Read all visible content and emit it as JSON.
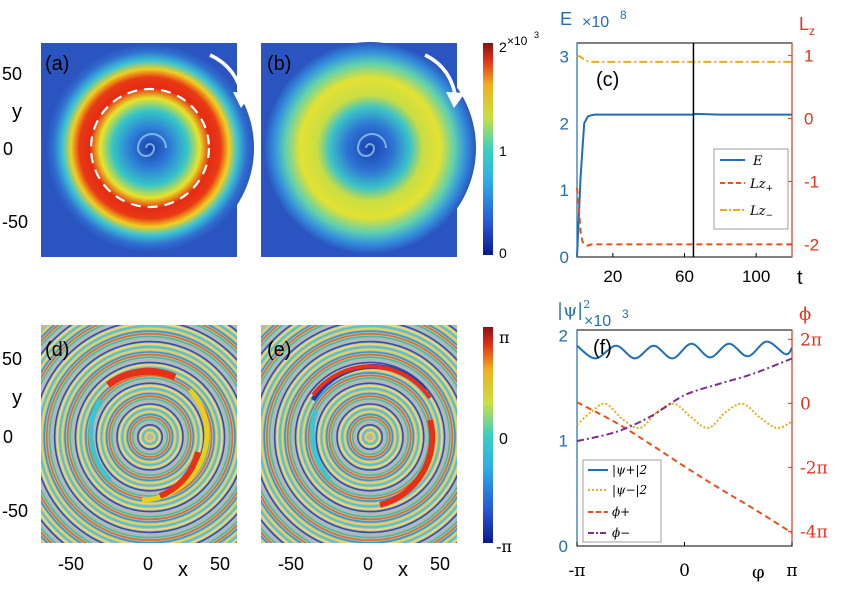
{
  "figure": {
    "panel_labels": [
      "(a)",
      "(b)",
      "(c)",
      "(d)",
      "(e)",
      "(f)"
    ],
    "map_axes": {
      "y_label": "y",
      "x_label": "x",
      "y_ticks": [
        "50",
        "0",
        "-50"
      ],
      "x_ticks": [
        "-50",
        "0",
        "50"
      ]
    },
    "density_colorbar": {
      "ticks": [
        "0",
        "1",
        "2"
      ],
      "exponent_label": "×10",
      "exponent": "3",
      "range": [
        0,
        2000
      ]
    },
    "phase_colorbar": {
      "ticks": [
        "π",
        "0",
        "-π"
      ],
      "range": [
        "-π",
        "π"
      ]
    },
    "colors": {
      "blue": "#1f6fb4",
      "orange": "#e8501c",
      "yellow": "#e9ad1c",
      "purple": "#7e2f8e",
      "black": "#000000",
      "right_axis": "#e8321c"
    }
  },
  "chart_data": [
    {
      "panel": "(c)",
      "type": "line",
      "xlabel": "t",
      "ylabel_left": "E",
      "ylabel_left_exponent": "×10",
      "ylabel_left_exponent_power": "8",
      "ylabel_right": "L",
      "ylabel_right_sub": "z",
      "xlim": [
        0,
        120
      ],
      "ylim_left": [
        0,
        3.2
      ],
      "ylim_right": [
        -2.2,
        1.2
      ],
      "xticks": [
        "20",
        "60",
        "100"
      ],
      "yticks_left": [
        "0",
        "1",
        "2",
        "3"
      ],
      "yticks_right": [
        "1",
        "0",
        "-1",
        "-2"
      ],
      "vertical_line_x": 65,
      "legend": {
        "position": "bottom-right",
        "entries": [
          "E",
          "Lz",
          "Lz"
        ],
        "subscripts": [
          "",
          "+",
          "−"
        ]
      },
      "series": [
        {
          "name": "E",
          "axis": "left",
          "x": [
            0,
            2,
            4,
            6,
            8,
            10,
            15,
            20,
            40,
            65,
            66,
            80,
            100,
            120
          ],
          "y": [
            0,
            1.2,
            2.0,
            2.1,
            2.12,
            2.13,
            2.13,
            2.13,
            2.13,
            2.13,
            2.14,
            2.13,
            2.13,
            2.13
          ]
        },
        {
          "name": "Lz+",
          "axis": "right",
          "x": [
            0,
            1,
            2,
            3,
            4,
            6,
            8,
            10,
            20,
            40,
            60,
            80,
            100,
            120
          ],
          "y": [
            -1.1,
            -1.4,
            -1.8,
            -1.95,
            -2.0,
            -2.02,
            -2.0,
            -2.0,
            -2.0,
            -2.0,
            -2.0,
            -2.0,
            -2.0,
            -2.0
          ]
        },
        {
          "name": "Lz-",
          "axis": "right",
          "x": [
            0,
            2,
            4,
            6,
            8,
            10,
            20,
            40,
            60,
            80,
            100,
            120
          ],
          "y": [
            1.0,
            0.98,
            0.93,
            0.91,
            0.9,
            0.9,
            0.9,
            0.9,
            0.9,
            0.9,
            0.9,
            0.9
          ]
        }
      ]
    },
    {
      "panel": "(f)",
      "type": "line",
      "xlabel": "φ",
      "ylabel_left": "|ψ|",
      "ylabel_left_power": "2",
      "ylabel_left_exponent": "×10",
      "ylabel_left_exponent_power": "3",
      "ylabel_right": "ϕ",
      "xlim": [
        -3.1416,
        3.1416
      ],
      "ylim_left": [
        0,
        2.05
      ],
      "ylim_right": [
        -14.0,
        7.2
      ],
      "xticks": [
        "-π",
        "0",
        "π"
      ],
      "yticks_left": [
        "0",
        "1",
        "2"
      ],
      "yticks_right": [
        "2π",
        "0",
        "-2π",
        "-4π"
      ],
      "legend": {
        "position": "bottom-left",
        "entries": [
          "|ψ+|2",
          "|ψ−|2",
          "ϕ+",
          "ϕ−"
        ]
      },
      "series": [
        {
          "name": "|ψ+|^2",
          "axis": "left",
          "style": "solid",
          "x": [
            -3.14,
            -2.6,
            -2.0,
            -1.45,
            -0.9,
            -0.35,
            0.2,
            0.75,
            1.3,
            1.85,
            2.4,
            2.95,
            3.14
          ],
          "y": [
            1.9,
            1.78,
            1.9,
            1.78,
            1.9,
            1.78,
            1.92,
            1.79,
            1.92,
            1.8,
            1.94,
            1.82,
            1.88
          ]
        },
        {
          "name": "|ψ-|^2",
          "axis": "left",
          "style": "dotted",
          "x": [
            -3.14,
            -2.7,
            -2.3,
            -1.8,
            -1.3,
            -0.8,
            -0.3,
            0.2,
            0.7,
            1.2,
            1.7,
            2.2,
            2.7,
            3.14
          ],
          "y": [
            1.15,
            1.28,
            1.35,
            1.2,
            1.12,
            1.27,
            1.35,
            1.22,
            1.12,
            1.27,
            1.35,
            1.22,
            1.12,
            1.18
          ]
        },
        {
          "name": "phi+",
          "axis": "right",
          "style": "dashed",
          "x": [
            -3.14,
            -2.0,
            -1.0,
            0.0,
            1.0,
            2.0,
            3.14
          ],
          "y": [
            0.1,
            -1.9,
            -4.0,
            -6.2,
            -8.3,
            -10.3,
            -12.7
          ]
        },
        {
          "name": "phi-",
          "axis": "right",
          "style": "dashdot",
          "x": [
            -3.14,
            -2.0,
            -1.0,
            0.0,
            1.0,
            2.0,
            3.14
          ],
          "y": [
            -3.7,
            -2.8,
            -1.3,
            0.8,
            1.9,
            2.9,
            4.4
          ]
        }
      ]
    }
  ]
}
